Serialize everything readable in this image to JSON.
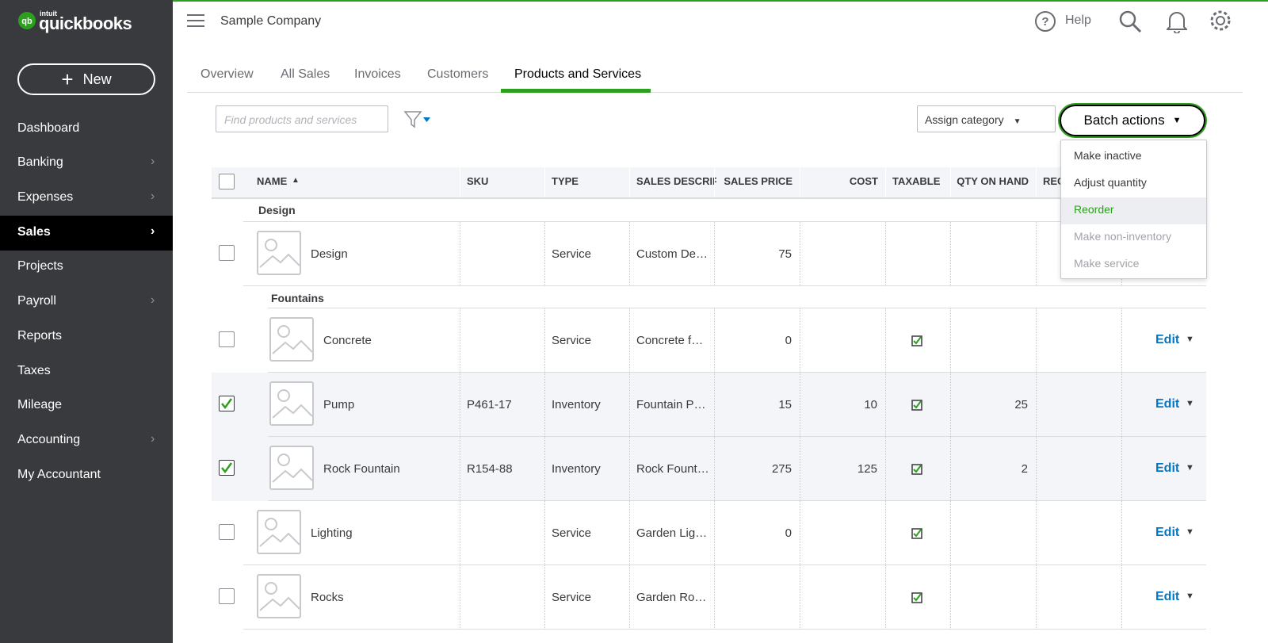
{
  "sidebar": {
    "logo_small": "intuit",
    "logo": "quickbooks",
    "new_button": "New",
    "items": [
      {
        "label": "Dashboard"
      },
      {
        "label": "Banking",
        "submenu": true
      },
      {
        "label": "Expenses",
        "submenu": true
      },
      {
        "label": "Sales",
        "submenu": true,
        "active": true
      },
      {
        "label": "Projects"
      },
      {
        "label": "Payroll",
        "submenu": true
      },
      {
        "label": "Reports"
      },
      {
        "label": "Taxes"
      },
      {
        "label": "Mileage"
      },
      {
        "label": "Accounting",
        "submenu": true
      },
      {
        "label": "My Accountant"
      }
    ]
  },
  "header": {
    "company": "Sample Company",
    "help": "Help"
  },
  "tabs": [
    {
      "label": "Overview"
    },
    {
      "label": "All Sales"
    },
    {
      "label": "Invoices"
    },
    {
      "label": "Customers"
    },
    {
      "label": "Products and Services",
      "active": true
    }
  ],
  "toolbar": {
    "search_placeholder": "Find products and services",
    "assign_category": "Assign category",
    "batch_actions": "Batch actions"
  },
  "batch_menu": [
    {
      "label": "Make inactive"
    },
    {
      "label": "Adjust quantity"
    },
    {
      "label": "Reorder",
      "highlighted": true
    },
    {
      "label": "Make non-inventory",
      "disabled": true
    },
    {
      "label": "Make service",
      "disabled": true
    }
  ],
  "table": {
    "columns": [
      "NAME",
      "SKU",
      "TYPE",
      "SALES DESCRIP",
      "SALES PRICE",
      "COST",
      "TAXABLE",
      "QTY ON HAND",
      "REC"
    ],
    "edit_label": "Edit",
    "rows": [
      {
        "category": "Design",
        "level": 0
      },
      {
        "name": "Design",
        "level": 0,
        "type": "Service",
        "description": "Custom De…",
        "price": 75
      },
      {
        "category": "Fountains",
        "level": 1
      },
      {
        "name": "Concrete",
        "level": 1,
        "type": "Service",
        "description": "Concrete f…",
        "price": 0,
        "taxable": true
      },
      {
        "name": "Pump",
        "level": 1,
        "checked": true,
        "sku": "P461-17",
        "type": "Inventory",
        "description": "Fountain P…",
        "price": 15,
        "cost": 10,
        "taxable": true,
        "qty": 25
      },
      {
        "name": "Rock Fountain",
        "level": 1,
        "checked": true,
        "sku": "R154-88",
        "type": "Inventory",
        "description": "Rock Fount…",
        "price": 275,
        "cost": 125,
        "taxable": true,
        "qty": 2
      },
      {
        "name": "Lighting",
        "level": 0,
        "type": "Service",
        "description": "Garden Lig…",
        "price": 0,
        "taxable": true
      },
      {
        "name": "Rocks",
        "level": 0,
        "type": "Service",
        "description": "Garden Ro…",
        "taxable": true
      }
    ]
  }
}
